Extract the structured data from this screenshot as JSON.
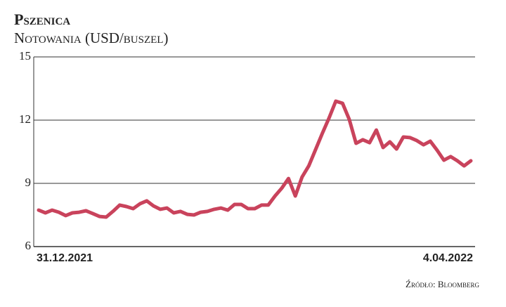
{
  "chart_data": {
    "type": "line",
    "title": "Pszenica",
    "subtitle": "Notowania (USD/buszel)",
    "source": "Źródło: Bloomberg",
    "categories": [
      "31.12.2021",
      null,
      null,
      null,
      null,
      null,
      null,
      null,
      null,
      null,
      null,
      null,
      null,
      null,
      null,
      null,
      null,
      null,
      null,
      null,
      null,
      null,
      null,
      null,
      null,
      null,
      null,
      null,
      null,
      null,
      null,
      null,
      null,
      null,
      null,
      null,
      null,
      null,
      null,
      null,
      null,
      null,
      null,
      null,
      null,
      null,
      null,
      null,
      null,
      null,
      null,
      null,
      null,
      null,
      null,
      null,
      null,
      null,
      null,
      null,
      null,
      null,
      null,
      null,
      "4.04.2022"
    ],
    "series": [
      {
        "name": "Pszenica",
        "color": "#c9435c",
        "values": [
          7.73,
          7.6,
          7.73,
          7.63,
          7.47,
          7.6,
          7.63,
          7.7,
          7.57,
          7.43,
          7.4,
          7.67,
          7.97,
          7.9,
          7.8,
          8.03,
          8.17,
          7.93,
          7.77,
          7.83,
          7.6,
          7.67,
          7.53,
          7.5,
          7.63,
          7.67,
          7.77,
          7.83,
          7.73,
          8.0,
          8.0,
          7.8,
          7.8,
          7.97,
          7.97,
          8.4,
          8.77,
          9.23,
          8.4,
          9.3,
          9.83,
          10.6,
          11.37,
          12.1,
          12.9,
          12.8,
          12.03,
          10.9,
          11.07,
          10.93,
          11.53,
          10.7,
          10.97,
          10.63,
          11.2,
          11.17,
          11.03,
          10.83,
          11.0,
          10.57,
          10.1,
          10.27,
          10.07,
          9.83,
          10.07
        ]
      }
    ],
    "ylim": [
      6,
      15
    ],
    "yticks": [
      6,
      9,
      12,
      15
    ],
    "grid": true
  }
}
